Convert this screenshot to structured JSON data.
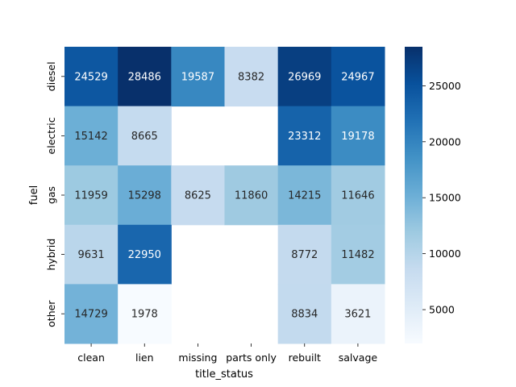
{
  "chart_data": {
    "type": "heatmap",
    "xlabel": "title_status",
    "ylabel": "fuel",
    "x_categories": [
      "clean",
      "lien",
      "missing",
      "parts only",
      "rebuilt",
      "salvage"
    ],
    "y_categories": [
      "diesel",
      "electric",
      "gas",
      "hybrid",
      "other"
    ],
    "values": [
      [
        24529,
        28486,
        19587,
        8382,
        26969,
        24967
      ],
      [
        15142,
        8665,
        null,
        null,
        23312,
        19178
      ],
      [
        11959,
        15298,
        8625,
        11860,
        14215,
        11646
      ],
      [
        9631,
        22950,
        null,
        null,
        8772,
        11482
      ],
      [
        14729,
        1978,
        null,
        null,
        8834,
        3621
      ]
    ],
    "colormap": "Blues",
    "vmin": 1978,
    "vmax": 28486,
    "colorbar_ticks": [
      5000,
      10000,
      15000,
      20000,
      25000
    ]
  }
}
